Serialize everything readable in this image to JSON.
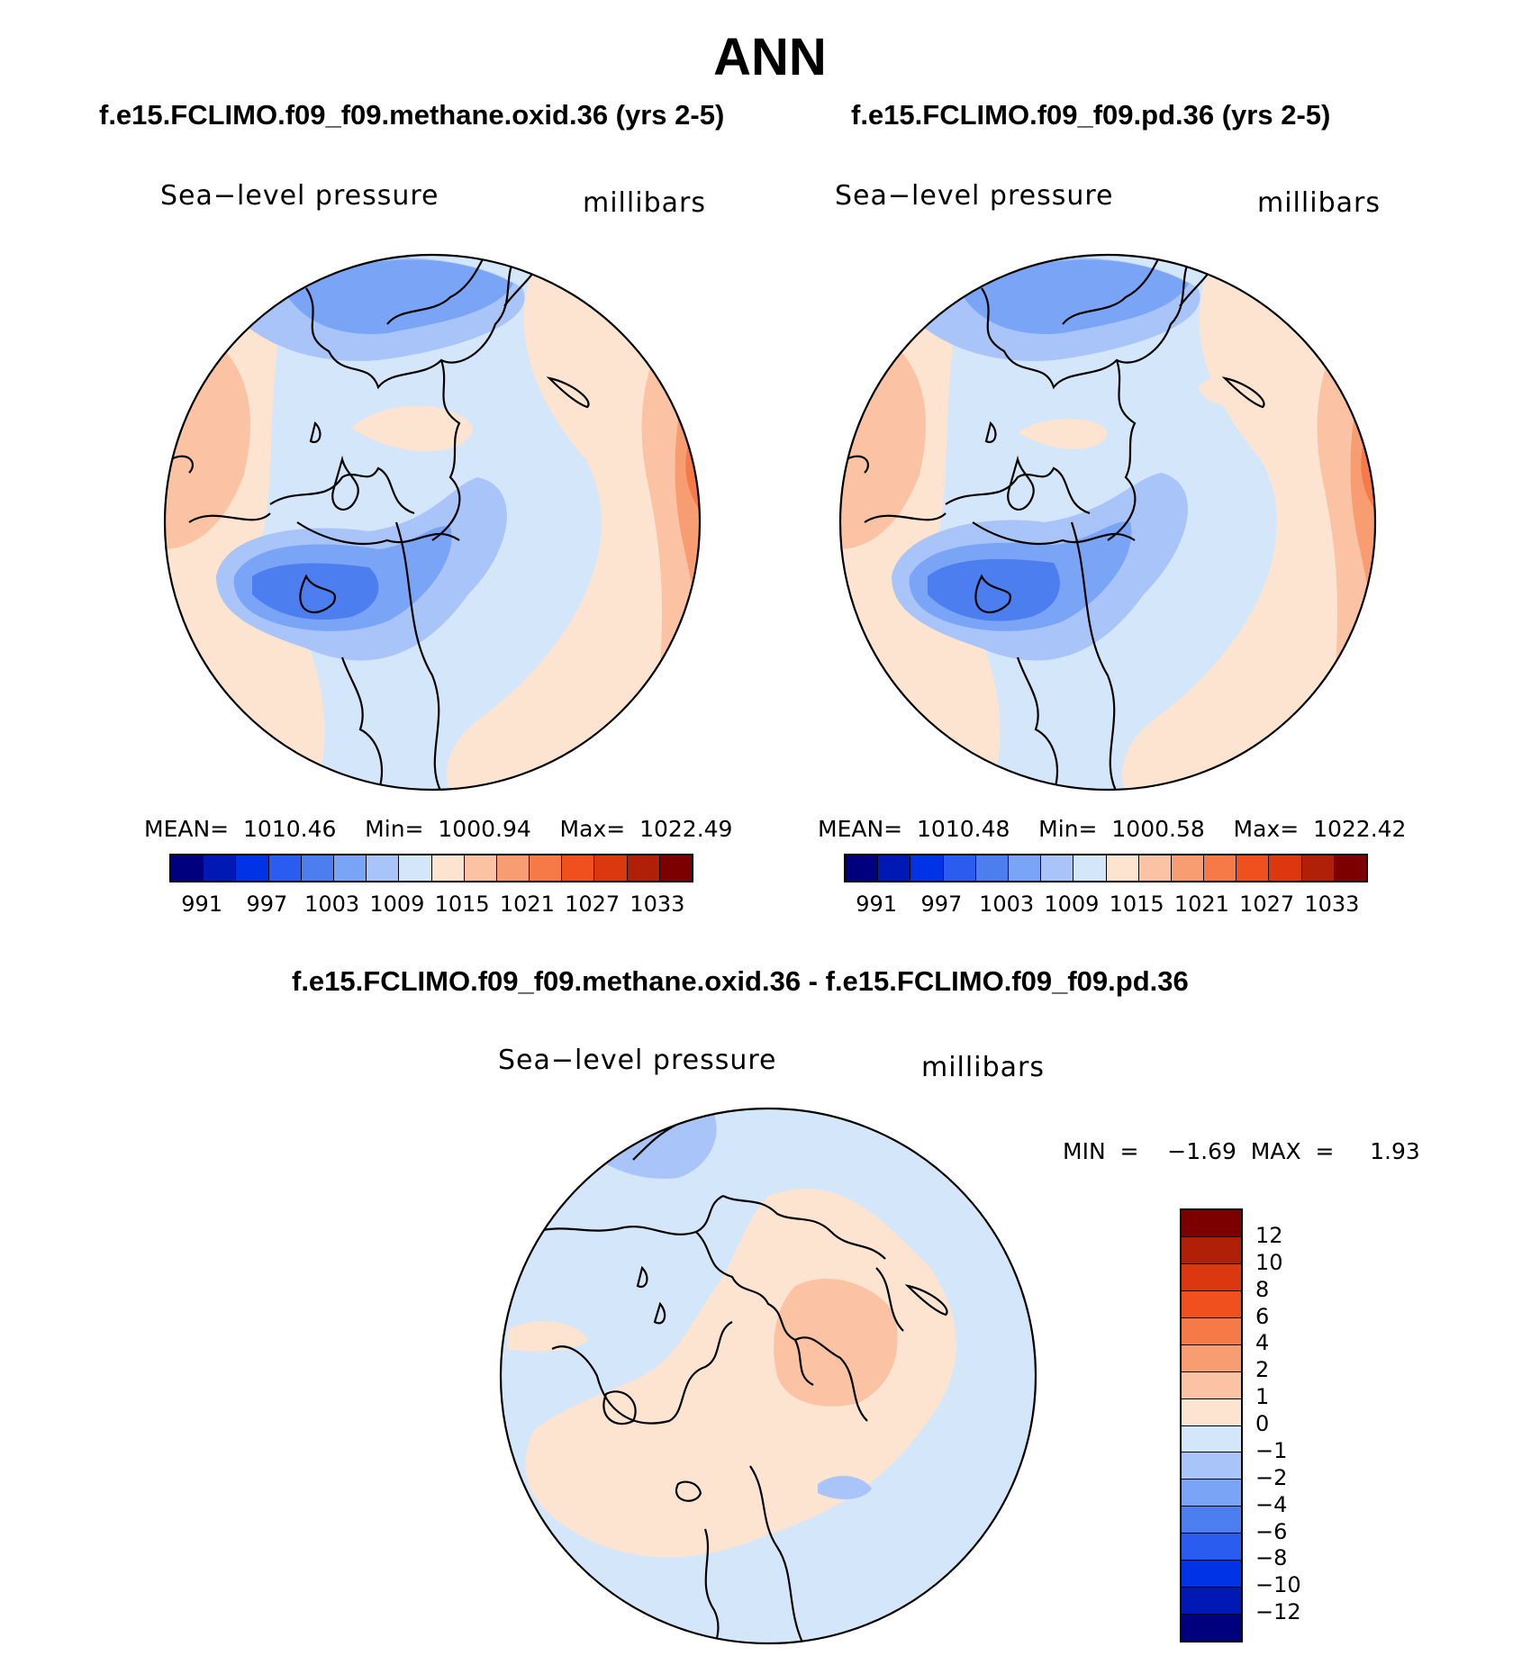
{
  "main_title": "ANN",
  "panels": {
    "left": {
      "case": "f.e15.FCLIMO.f09_f09.methane.oxid.36 (yrs 2-5)",
      "variable": "Sea−level  pressure",
      "units": "millibars",
      "stats": "MEAN=  1010.46    Min=  1000.94    Max=  1022.49"
    },
    "right": {
      "case": "f.e15.FCLIMO.f09_f09.pd.36 (yrs 2-5)",
      "variable": "Sea−level  pressure",
      "units": "millibars",
      "stats": "MEAN=  1010.48    Min=  1000.58    Max=  1022.42"
    },
    "diff": {
      "case": "f.e15.FCLIMO.f09_f09.methane.oxid.36 - f.e15.FCLIMO.f09_f09.pd.36",
      "variable": "Sea−level  pressure",
      "units": "millibars",
      "stats": "MIN  =    −1.69  MAX  =     1.93"
    }
  },
  "abs_colorbar": {
    "colors": [
      "#00007f",
      "#0019b4",
      "#0032e6",
      "#2a5cf0",
      "#4d7ef0",
      "#7aa4f5",
      "#a8c4f8",
      "#d4e6fa",
      "#fde4d0",
      "#fbc3a4",
      "#f89c72",
      "#f57a48",
      "#f0501e",
      "#dc3810",
      "#b02008",
      "#7d0000"
    ],
    "labels": [
      "991",
      "997",
      "1003",
      "1009",
      "1015",
      "1021",
      "1027",
      "1033"
    ]
  },
  "diff_colorbar": {
    "colors": [
      "#7d0000",
      "#b02008",
      "#dc3810",
      "#f0501e",
      "#f57a48",
      "#f89c72",
      "#fbc3a4",
      "#fde4d0",
      "#d4e6fa",
      "#a8c4f8",
      "#7aa4f5",
      "#4d7ef0",
      "#2a5cf0",
      "#0032e6",
      "#0019b4",
      "#00007f"
    ],
    "labels": [
      "12",
      "10",
      "8",
      "6",
      "4",
      "2",
      "1",
      "0",
      "−1",
      "−2",
      "−4",
      "−6",
      "−8",
      "−10",
      "−12"
    ]
  },
  "map_colors": {
    "pos1": "#fde4d0",
    "pos2": "#fbc3a4",
    "pos3": "#f89c72",
    "pos4": "#f57a48",
    "neg1": "#d4e6fa",
    "neg2": "#a8c4f8",
    "neg3": "#7aa4f5",
    "neg4": "#4d7ef0",
    "neg5": "#2a5cf0"
  }
}
